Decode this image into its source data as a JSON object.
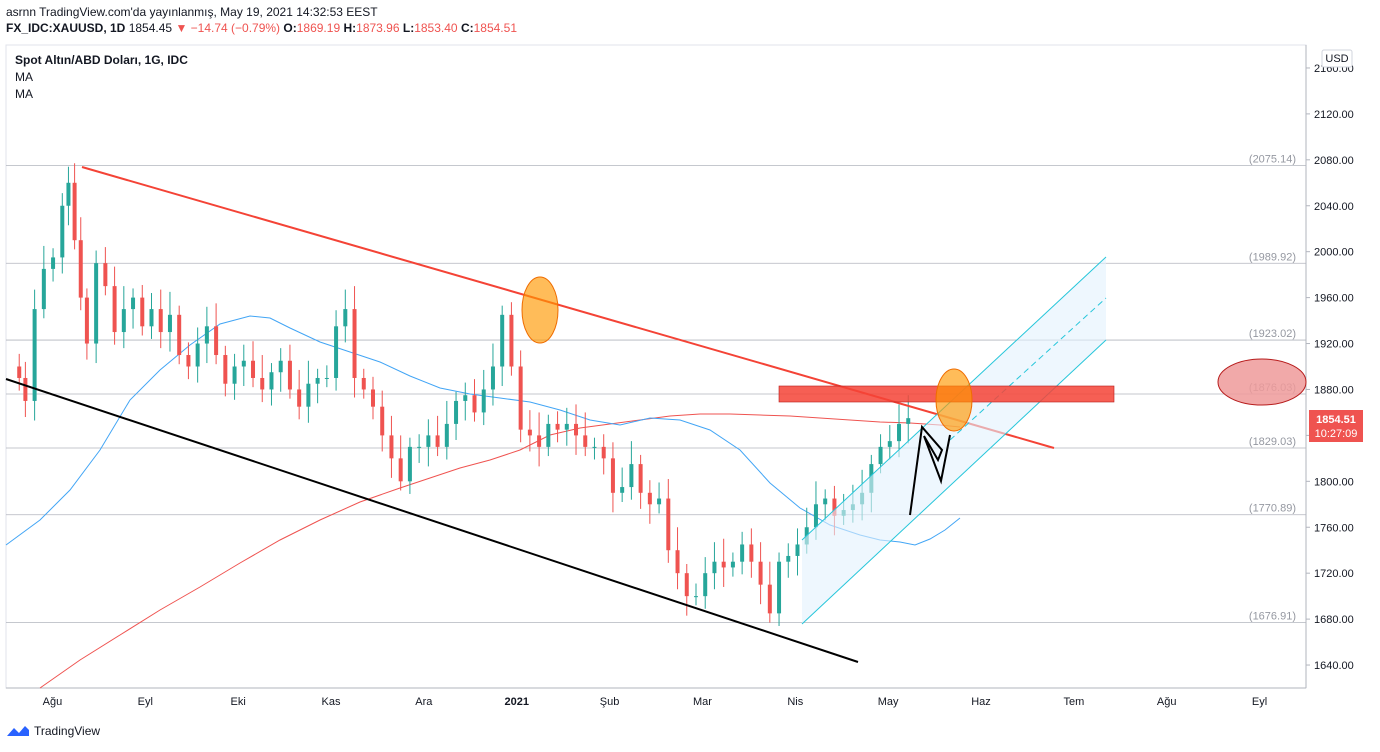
{
  "header": {
    "publisher_line": "asrnn TradingView.com'da yayınlanmış, May 19, 2021 14:32:53 EEST",
    "symbol": "FX_IDC:XAUUSD, 1D",
    "last": "1854.45",
    "change": "▼ −14.74 (−0.79%)",
    "o_label": "O:",
    "o_value": "1869.19",
    "h_label": "H:",
    "h_value": "1873.96",
    "l_label": "L:",
    "l_value": "1853.40",
    "c_label": "C:",
    "c_value": "1854.51"
  },
  "legend": {
    "title": "Spot Altın/ABD Doları, 1G, IDC",
    "indicators": [
      "MA",
      "MA"
    ]
  },
  "price_axis": {
    "currency": "USD",
    "ticks": [
      "2160.00",
      "2120.00",
      "2080.00",
      "2040.00",
      "2000.00",
      "1960.00",
      "1920.00",
      "1880.00",
      "1840.00",
      "1800.00",
      "1760.00",
      "1720.00",
      "1680.00",
      "1640.00"
    ],
    "current_price": "1854.51",
    "countdown": "10:27:09"
  },
  "time_axis": [
    "Ağu",
    "Eyl",
    "Eki",
    "Kas",
    "Ara",
    "2021",
    "Şub",
    "Mar",
    "Nis",
    "May",
    "Haz",
    "Tem",
    "Ağu",
    "Eyl"
  ],
  "levels": [
    "(2075.14)",
    "(1989.92)",
    "(1923.02)",
    "(1876.03)",
    "(1829.03)",
    "(1770.89)",
    "(1676.91)"
  ],
  "footer": {
    "brand": "TradingView"
  },
  "colors": {
    "up": "#26a69a",
    "down": "#ef5350",
    "ma_short": "#42a5f5",
    "ma_long": "#ef5350",
    "trend_red": "#f44336",
    "channel": "#26c6da",
    "highlight": "#ff9800"
  },
  "chart_data": {
    "type": "candlestick",
    "symbol": "XAUUSD",
    "ylim": [
      1620,
      2180
    ],
    "levels": [
      2075.14,
      1989.92,
      1923.02,
      1876.03,
      1829.03,
      1770.89,
      1676.91
    ],
    "points": [
      [
        1,
        1900
      ],
      [
        3,
        1890
      ],
      [
        5,
        1870
      ],
      [
        8,
        1950
      ],
      [
        11,
        1985
      ],
      [
        14,
        1995
      ],
      [
        17,
        2040
      ],
      [
        19,
        2060
      ],
      [
        21,
        2010
      ],
      [
        23,
        1960
      ],
      [
        25,
        1920
      ],
      [
        28,
        1990
      ],
      [
        31,
        1970
      ],
      [
        34,
        1930
      ],
      [
        37,
        1950
      ],
      [
        40,
        1960
      ],
      [
        43,
        1935
      ],
      [
        46,
        1950
      ],
      [
        49,
        1930
      ],
      [
        52,
        1945
      ],
      [
        55,
        1910
      ],
      [
        58,
        1900
      ],
      [
        61,
        1920
      ],
      [
        64,
        1935
      ],
      [
        67,
        1910
      ],
      [
        70,
        1885
      ],
      [
        73,
        1900
      ],
      [
        76,
        1905
      ],
      [
        79,
        1890
      ],
      [
        82,
        1880
      ],
      [
        85,
        1895
      ],
      [
        88,
        1905
      ],
      [
        91,
        1880
      ],
      [
        94,
        1865
      ],
      [
        97,
        1885
      ],
      [
        100,
        1890
      ],
      [
        103,
        1890
      ],
      [
        106,
        1935
      ],
      [
        109,
        1950
      ],
      [
        112,
        1890
      ],
      [
        115,
        1880
      ],
      [
        118,
        1865
      ],
      [
        121,
        1840
      ],
      [
        124,
        1820
      ],
      [
        127,
        1800
      ],
      [
        130,
        1830
      ],
      [
        133,
        1830
      ],
      [
        136,
        1840
      ],
      [
        139,
        1830
      ],
      [
        142,
        1850
      ],
      [
        145,
        1870
      ],
      [
        148,
        1875
      ],
      [
        151,
        1860
      ],
      [
        154,
        1880
      ],
      [
        157,
        1900
      ],
      [
        160,
        1945
      ],
      [
        163,
        1900
      ],
      [
        166,
        1845
      ],
      [
        169,
        1840
      ],
      [
        172,
        1830
      ],
      [
        175,
        1850
      ],
      [
        178,
        1845
      ],
      [
        181,
        1850
      ],
      [
        184,
        1840
      ],
      [
        187,
        1830
      ],
      [
        190,
        1830
      ],
      [
        193,
        1820
      ],
      [
        196,
        1790
      ],
      [
        199,
        1795
      ],
      [
        202,
        1815
      ],
      [
        205,
        1790
      ],
      [
        208,
        1780
      ],
      [
        211,
        1785
      ],
      [
        214,
        1740
      ],
      [
        217,
        1720
      ],
      [
        220,
        1700
      ],
      [
        223,
        1700
      ],
      [
        226,
        1720
      ],
      [
        229,
        1730
      ],
      [
        232,
        1725
      ],
      [
        235,
        1730
      ],
      [
        238,
        1745
      ],
      [
        241,
        1730
      ],
      [
        244,
        1710
      ],
      [
        247,
        1685
      ],
      [
        250,
        1730
      ],
      [
        253,
        1735
      ],
      [
        256,
        1745
      ],
      [
        259,
        1760
      ],
      [
        262,
        1780
      ],
      [
        265,
        1785
      ],
      [
        268,
        1770
      ],
      [
        271,
        1775
      ],
      [
        274,
        1780
      ],
      [
        277,
        1790
      ],
      [
        280,
        1815
      ],
      [
        283,
        1830
      ],
      [
        286,
        1835
      ],
      [
        289,
        1850
      ],
      [
        292,
        1855
      ]
    ],
    "x_axis_labels": [
      "Ağu",
      "Eyl",
      "Eki",
      "Kas",
      "Ara",
      "2021",
      "Şub",
      "Mar",
      "Nis",
      "May",
      "Haz",
      "Tem",
      "Ağu",
      "Eyl"
    ]
  }
}
